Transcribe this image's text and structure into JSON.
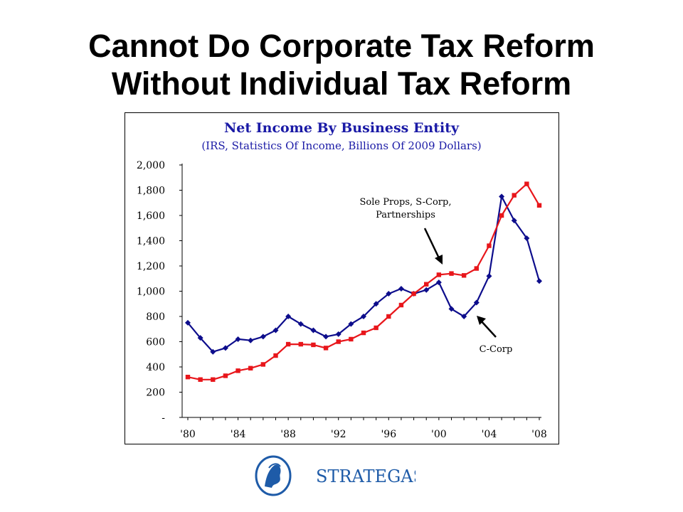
{
  "slide": {
    "title_line1": "Cannot Do Corporate Tax Reform",
    "title_line2": "Without Individual Tax Reform"
  },
  "logo": {
    "text": "STRATEGAS"
  },
  "colors": {
    "title_color": "#1a1aa6",
    "c_corp": "#0d0d8c",
    "pass_through": "#e8161b",
    "logo_blue": "#1e5ba8"
  },
  "chart_data": {
    "type": "line",
    "title": "Net Income By Business Entity",
    "subtitle": "(IRS, Statistics Of Income, Billions Of 2009 Dollars)",
    "xlabel": "",
    "ylabel": "",
    "x": [
      1980,
      1981,
      1982,
      1983,
      1984,
      1985,
      1986,
      1987,
      1988,
      1989,
      1990,
      1991,
      1992,
      1993,
      1994,
      1995,
      1996,
      1997,
      1998,
      1999,
      2000,
      2001,
      2002,
      2003,
      2004,
      2005,
      2006,
      2007,
      2008
    ],
    "xlim": [
      1980,
      2008
    ],
    "ylim": [
      0,
      2000
    ],
    "x_ticks": [
      1980,
      1984,
      1988,
      1992,
      1996,
      2000,
      2004,
      2008
    ],
    "x_tick_labels": [
      "'80",
      "'84",
      "'88",
      "'92",
      "'96",
      "'00",
      "'04",
      "'08"
    ],
    "y_ticks": [
      0,
      200,
      400,
      600,
      800,
      1000,
      1200,
      1400,
      1600,
      1800,
      2000
    ],
    "y_tick_labels": [
      "-",
      "200",
      "400",
      "600",
      "800",
      "1,000",
      "1,200",
      "1,400",
      "1,600",
      "1,800",
      "2,000"
    ],
    "grid": false,
    "series": [
      {
        "name": "C-Corp",
        "marker": "diamond",
        "values": [
          750,
          630,
          520,
          550,
          620,
          610,
          640,
          690,
          800,
          740,
          690,
          640,
          660,
          740,
          800,
          900,
          980,
          1020,
          980,
          1010,
          1070,
          860,
          800,
          910,
          1120,
          1750,
          1560,
          1420,
          1080
        ]
      },
      {
        "name": "Sole Props, S-Corp, Partnerships",
        "marker": "square",
        "values": [
          320,
          300,
          300,
          330,
          370,
          390,
          420,
          490,
          580,
          580,
          575,
          550,
          600,
          620,
          670,
          710,
          800,
          890,
          980,
          1055,
          1130,
          1140,
          1125,
          1180,
          1360,
          1600,
          1760,
          1850,
          1680
        ]
      }
    ],
    "annotations": [
      {
        "text_lines": [
          "Sole Props, S-Corp,",
          "Partnerships"
        ],
        "points_to_series": 1
      },
      {
        "text_lines": [
          "C-Corp"
        ],
        "points_to_series": 0
      }
    ]
  }
}
